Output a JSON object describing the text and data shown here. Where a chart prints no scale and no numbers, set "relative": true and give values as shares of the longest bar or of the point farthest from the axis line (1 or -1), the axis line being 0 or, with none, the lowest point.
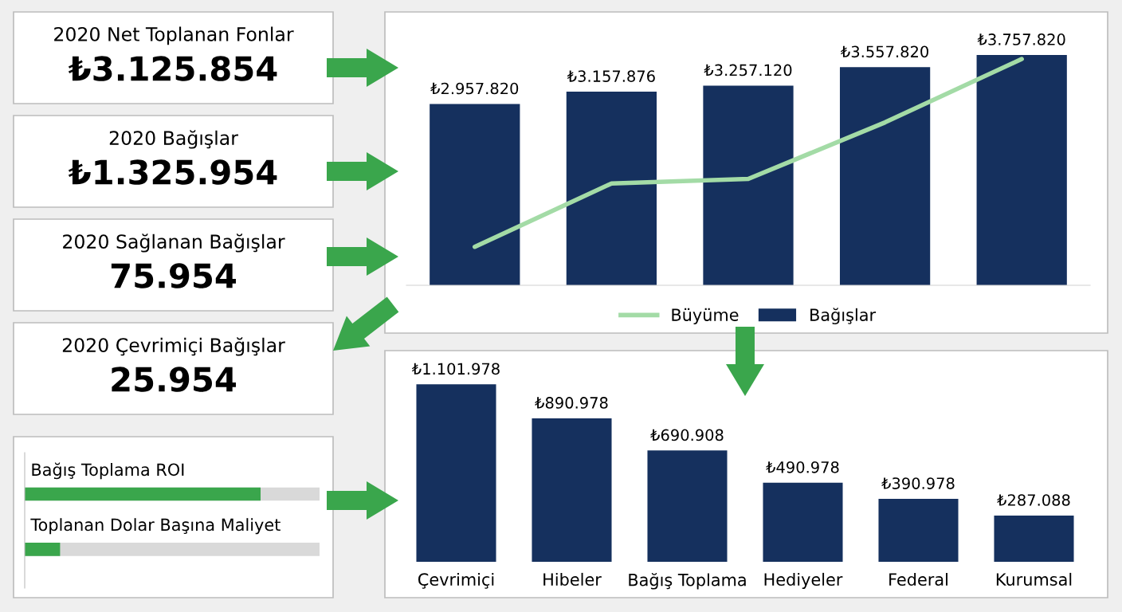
{
  "chart_data": [
    {
      "type": "other",
      "title": "2020 Net Toplanan Fonlar",
      "annotations": [
        "₺3.125.854"
      ]
    },
    {
      "type": "other",
      "title": "2020 Bağışlar",
      "annotations": [
        "₺1.325.954"
      ]
    },
    {
      "type": "other",
      "title": "2020 Sağlanan Bağışlar",
      "annotations": [
        "75.954"
      ]
    },
    {
      "type": "other",
      "title": "2020 Çevrimiçi Bağışlar",
      "annotations": [
        "25.954"
      ]
    },
    {
      "type": "bar",
      "orientation": "horizontal",
      "relative": true,
      "categories": [
        "Bağış Toplama ROI",
        "Toplanan Dolar Başına Maliyet"
      ],
      "values": [
        1,
        0.15
      ],
      "color": "#3aa64c",
      "tick_labels": false
    },
    {
      "type": "line",
      "relative": true,
      "categories": [
        null,
        null,
        null,
        null,
        null
      ],
      "tick_labels": false,
      "series": [
        {
          "name": "Büyüme",
          "type": "line",
          "color": "#a3dba6",
          "values": [
            0.17,
            0.45,
            0.47,
            0.72,
            1
          ]
        }
      ]
    },
    {
      "type": "bar",
      "categories": [
        null,
        null,
        null,
        null,
        null
      ],
      "tick_labels": false,
      "legend": "bottom",
      "series": [
        {
          "name": "Bağışlar",
          "type": "bar",
          "color": "#15305e",
          "values": [
            2957820,
            3157876,
            3257120,
            3557820,
            3757820
          ],
          "value_labels": [
            "₺2.957.820",
            "₺3.157.876",
            "₺3.257.120",
            "₺3.557.820",
            "₺3.757.820"
          ]
        }
      ]
    },
    {
      "type": "bar",
      "categories": [
        "Çevrimiçi",
        "Hibeler",
        "Bağış Toplama",
        "Hediyeler",
        "Federal",
        "Kurumsal"
      ],
      "values": [
        1101978,
        890978,
        690908,
        490978,
        390978,
        287088
      ],
      "value_labels": [
        "₺1.101.978",
        "₺890.978",
        "₺690.908",
        "₺490.978",
        "₺390.978",
        "₺287.088"
      ],
      "color": "#15305e",
      "tick_labels": "x"
    }
  ]
}
